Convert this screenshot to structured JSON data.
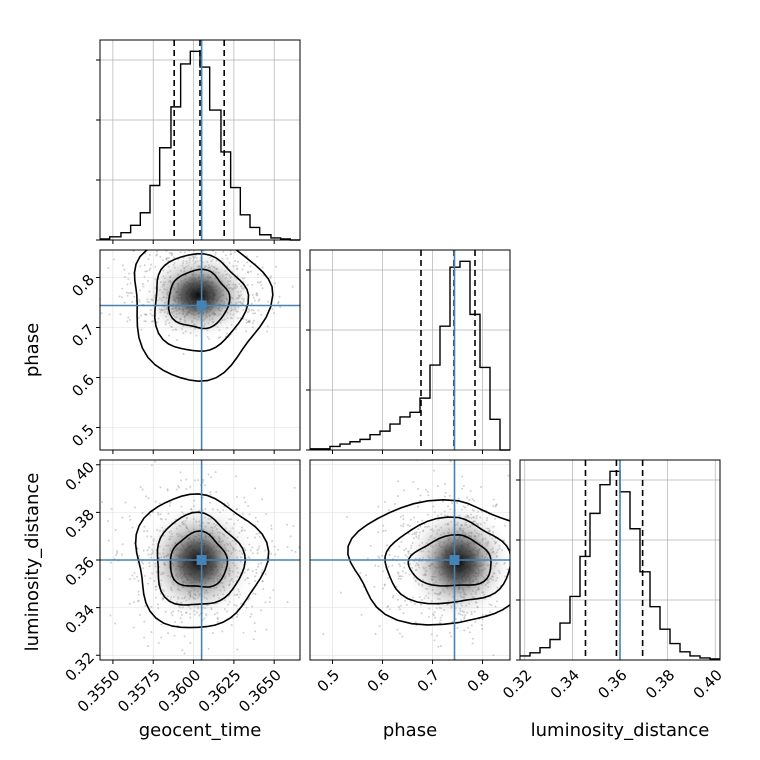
{
  "chart_data": {
    "type": "corner",
    "parameters": [
      "geocent_time",
      "phase",
      "luminosity_distance"
    ],
    "axis_labels": {
      "x": [
        "geocent_time",
        "phase",
        "luminosity_distance"
      ],
      "y": [
        "phase",
        "luminosity_distance"
      ]
    },
    "ranges": [
      [
        0.3542,
        0.3666
      ],
      [
        0.455,
        0.855
      ],
      [
        0.318,
        0.402
      ]
    ],
    "ticks": [
      {
        "values": [
          0.355,
          0.3575,
          0.36,
          0.3625,
          0.365
        ],
        "labels": [
          "0.3550",
          "0.3575",
          "0.3600",
          "0.3625",
          "0.3650"
        ]
      },
      {
        "values": [
          0.5,
          0.6,
          0.7,
          0.8
        ],
        "labels": [
          "0.5",
          "0.6",
          "0.7",
          "0.8"
        ]
      },
      {
        "values": [
          0.32,
          0.34,
          0.36,
          0.38,
          0.4
        ],
        "labels": [
          "0.32",
          "0.34",
          "0.36",
          "0.38",
          "0.40"
        ]
      }
    ],
    "truths": [
      0.3605,
      0.744,
      0.36
    ],
    "quantiles": [
      [
        0.3588,
        0.3604,
        0.3619
      ],
      [
        0.677,
        0.743,
        0.785
      ],
      [
        0.3455,
        0.3585,
        0.3695
      ]
    ],
    "histograms": [
      {
        "bin_edges": [
          0.3542,
          0.3548,
          0.3555,
          0.3561,
          0.3567,
          0.3573,
          0.3579,
          0.3586,
          0.3592,
          0.3598,
          0.3604,
          0.361,
          0.3617,
          0.3623,
          0.3629,
          0.3635,
          0.3641,
          0.3648,
          0.3654,
          0.366,
          0.3666
        ],
        "counts": [
          1,
          3,
          7,
          14,
          26,
          52,
          88,
          127,
          168,
          180,
          165,
          124,
          84,
          50,
          24,
          12,
          5,
          2,
          1,
          0
        ]
      },
      {
        "bin_edges": [
          0.455,
          0.475,
          0.495,
          0.515,
          0.535,
          0.555,
          0.575,
          0.595,
          0.615,
          0.635,
          0.655,
          0.675,
          0.695,
          0.715,
          0.735,
          0.755,
          0.775,
          0.795,
          0.815,
          0.835,
          0.855
        ],
        "counts": [
          1,
          1,
          3,
          5,
          7,
          9,
          13,
          16,
          22,
          28,
          32,
          44,
          72,
          105,
          155,
          160,
          115,
          70,
          26,
          0
        ]
      },
      {
        "bin_edges": [
          0.318,
          0.3222,
          0.3264,
          0.3306,
          0.3348,
          0.339,
          0.3432,
          0.3474,
          0.3516,
          0.3558,
          0.36,
          0.3642,
          0.3684,
          0.3726,
          0.3768,
          0.381,
          0.3852,
          0.3894,
          0.3936,
          0.3978,
          0.402
        ],
        "counts": [
          4,
          7,
          12,
          20,
          36,
          62,
          101,
          143,
          171,
          184,
          164,
          128,
          86,
          52,
          30,
          16,
          8,
          4,
          2,
          1
        ]
      }
    ],
    "joint_2d": [
      {
        "x_param": "geocent_time",
        "y_param": "phase",
        "center": [
          0.3603,
          0.765
        ]
      },
      {
        "x_param": "geocent_time",
        "y_param": "luminosity_distance",
        "center": [
          0.3603,
          0.3595
        ]
      },
      {
        "x_param": "phase",
        "y_param": "luminosity_distance",
        "center": [
          0.752,
          0.359
        ]
      }
    ],
    "colors": {
      "truth": "#4682b4",
      "hist": "#000000",
      "grid": "#b0b0b0"
    },
    "grid": true,
    "legend": "none"
  }
}
